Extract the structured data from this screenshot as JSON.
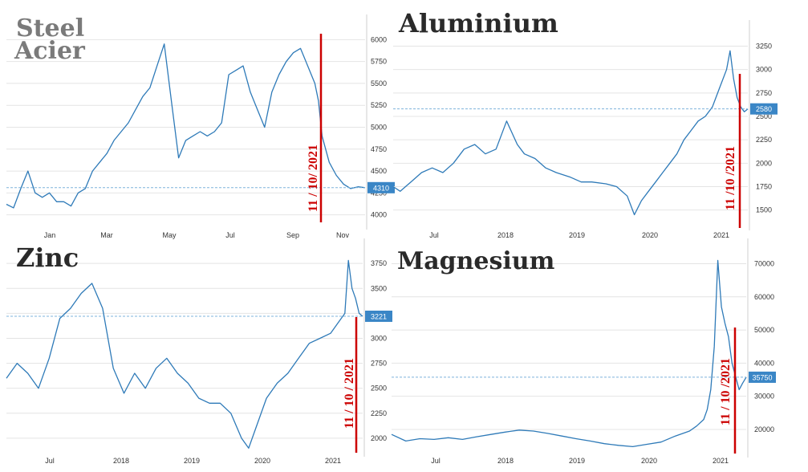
{
  "colors": {
    "line": "#2e7ab8",
    "marker": "#cc0000",
    "badge": "#3a86c6",
    "title_gray": "#7a7a7a",
    "title_dark": "#2a2a2a"
  },
  "chart_data": [
    {
      "type": "line",
      "title": "Steel",
      "subtitle": "Acier",
      "x_tick_labels": [
        "Jan",
        "Mar",
        "May",
        "Jul",
        "Sep",
        "Nov"
      ],
      "y_tick_labels": [
        "4000",
        "4250",
        "4500",
        "4750",
        "5000",
        "5250",
        "5500",
        "5750",
        "6000"
      ],
      "ylim": [
        3850,
        6150
      ],
      "last_value": "4310",
      "annotation": "11 / 10/ 2021",
      "series": [
        {
          "x": [
            0.0,
            0.02,
            0.04,
            0.06,
            0.08,
            0.1,
            0.12,
            0.14,
            0.16,
            0.18,
            0.2,
            0.22,
            0.24,
            0.26,
            0.28,
            0.3,
            0.32,
            0.34,
            0.36,
            0.38,
            0.4,
            0.42,
            0.44,
            0.46,
            0.48,
            0.5,
            0.52,
            0.54,
            0.56,
            0.58,
            0.6,
            0.62,
            0.64,
            0.66,
            0.68,
            0.7,
            0.72,
            0.74,
            0.76,
            0.78,
            0.8,
            0.82,
            0.84,
            0.86,
            0.87,
            0.88,
            0.9,
            0.92,
            0.94,
            0.96,
            0.98,
            1.0
          ],
          "values": [
            4120,
            4080,
            4300,
            4500,
            4250,
            4200,
            4250,
            4150,
            4150,
            4100,
            4250,
            4300,
            4500,
            4600,
            4700,
            4850,
            4950,
            5050,
            5200,
            5350,
            5450,
            5700,
            5950,
            5300,
            4650,
            4850,
            4900,
            4950,
            4900,
            4950,
            5050,
            5600,
            5650,
            5700,
            5400,
            5200,
            5000,
            5400,
            5600,
            5750,
            5850,
            5900,
            5700,
            5500,
            5300,
            4900,
            4600,
            4450,
            4350,
            4300,
            4320,
            4310
          ]
        }
      ]
    },
    {
      "type": "line",
      "title": "Aluminium",
      "x_tick_labels": [
        "Jul",
        "2018",
        "2019",
        "2020",
        "2021"
      ],
      "y_tick_labels": [
        "1500",
        "1750",
        "2000",
        "2250",
        "2500",
        "2750",
        "3000",
        "3250"
      ],
      "ylim": [
        1300,
        3400
      ],
      "last_value": "2580",
      "annotation": "11 /10 /2021",
      "series": [
        {
          "x": [
            0.0,
            0.02,
            0.05,
            0.08,
            0.11,
            0.14,
            0.17,
            0.2,
            0.23,
            0.26,
            0.29,
            0.32,
            0.35,
            0.37,
            0.4,
            0.43,
            0.46,
            0.5,
            0.53,
            0.56,
            0.6,
            0.63,
            0.66,
            0.68,
            0.7,
            0.72,
            0.74,
            0.76,
            0.78,
            0.8,
            0.82,
            0.84,
            0.86,
            0.88,
            0.9,
            0.92,
            0.94,
            0.95,
            0.96,
            0.97,
            0.98,
            0.99,
            1.0
          ],
          "values": [
            1750,
            1700,
            1800,
            1900,
            1950,
            1900,
            2000,
            2150,
            2200,
            2100,
            2150,
            2450,
            2200,
            2100,
            2050,
            1950,
            1900,
            1850,
            1800,
            1800,
            1780,
            1750,
            1650,
            1450,
            1600,
            1700,
            1800,
            1900,
            2000,
            2100,
            2250,
            2350,
            2450,
            2500,
            2600,
            2800,
            3000,
            3200,
            2900,
            2700,
            2600,
            2550,
            2580
          ]
        }
      ]
    },
    {
      "type": "line",
      "title": "Zinc",
      "x_tick_labels": [
        "Jul",
        "2018",
        "2019",
        "2020",
        "2021"
      ],
      "y_tick_labels": [
        "2000",
        "2250",
        "2500",
        "2750",
        "3000",
        "3250",
        "3500",
        "3750"
      ],
      "ylim": [
        1830,
        3880
      ],
      "last_value": "3221",
      "annotation": "11 / 10 / 2021",
      "series": [
        {
          "x": [
            0.0,
            0.03,
            0.06,
            0.09,
            0.12,
            0.15,
            0.18,
            0.21,
            0.24,
            0.27,
            0.3,
            0.33,
            0.36,
            0.39,
            0.42,
            0.45,
            0.48,
            0.51,
            0.54,
            0.57,
            0.6,
            0.63,
            0.66,
            0.68,
            0.7,
            0.73,
            0.76,
            0.79,
            0.82,
            0.85,
            0.88,
            0.91,
            0.93,
            0.95,
            0.96,
            0.97,
            0.98,
            0.99,
            1.0
          ],
          "values": [
            2600,
            2750,
            2650,
            2500,
            2800,
            3200,
            3300,
            3450,
            3550,
            3300,
            2700,
            2450,
            2650,
            2500,
            2700,
            2800,
            2650,
            2550,
            2400,
            2350,
            2350,
            2250,
            2000,
            1900,
            2100,
            2400,
            2550,
            2650,
            2800,
            2950,
            3000,
            3050,
            3150,
            3250,
            3780,
            3500,
            3400,
            3250,
            3221
          ]
        }
      ]
    },
    {
      "type": "line",
      "title": "Magnesium",
      "x_tick_labels": [
        "Jul",
        "2018",
        "2019",
        "2020",
        "2021"
      ],
      "y_tick_labels": [
        "20000",
        "30000",
        "40000",
        "50000",
        "60000",
        "70000"
      ],
      "ylim": [
        12000,
        74000
      ],
      "last_value": "35750",
      "annotation": "11 / 10 /2021",
      "series": [
        {
          "x": [
            0.0,
            0.04,
            0.08,
            0.12,
            0.16,
            0.2,
            0.24,
            0.28,
            0.32,
            0.36,
            0.4,
            0.44,
            0.48,
            0.52,
            0.56,
            0.6,
            0.64,
            0.68,
            0.72,
            0.76,
            0.8,
            0.84,
            0.86,
            0.88,
            0.89,
            0.9,
            0.91,
            0.92,
            0.93,
            0.94,
            0.95,
            0.96,
            0.97,
            0.98,
            0.99,
            1.0
          ],
          "values": [
            18500,
            16500,
            17200,
            17000,
            17500,
            17000,
            17800,
            18500,
            19200,
            19800,
            19500,
            18800,
            18000,
            17200,
            16500,
            15700,
            15200,
            14800,
            15500,
            16200,
            18000,
            19500,
            21000,
            23000,
            26000,
            32000,
            45000,
            71000,
            57000,
            52000,
            48000,
            40000,
            36000,
            32000,
            34000,
            35750
          ]
        }
      ]
    }
  ]
}
